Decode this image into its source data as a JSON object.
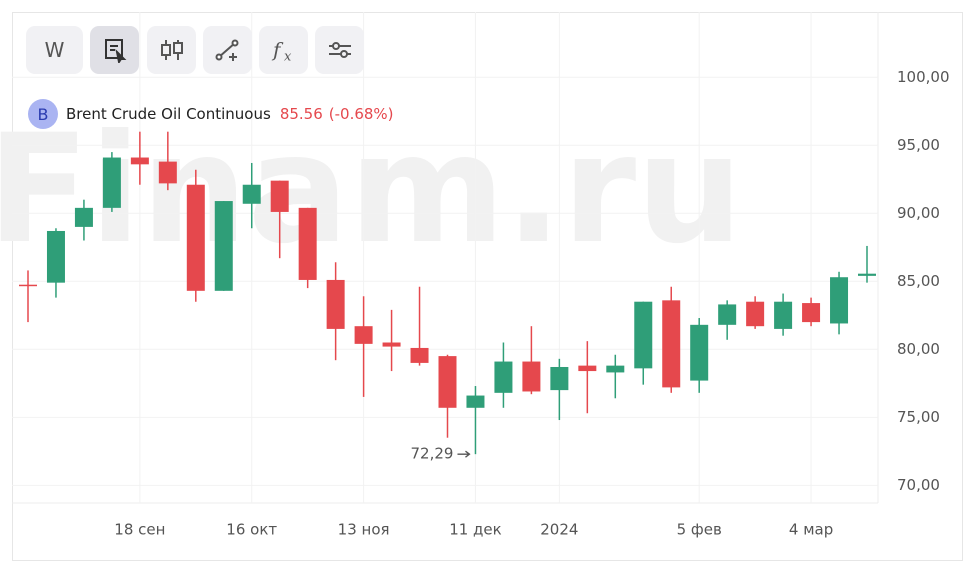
{
  "toolbar": {
    "interval": "W"
  },
  "watermark": "Finam.ru",
  "chart_data": {
    "type": "candlestick",
    "legend": {
      "icon": "B",
      "name": "Brent Crude Oil Continuous",
      "last": 85.56,
      "change": {
        "value": -0.68,
        "label": "(-0.68%)"
      }
    },
    "categories": [
      null,
      null,
      null,
      null,
      "18 сен",
      null,
      null,
      null,
      "16 окт",
      null,
      null,
      null,
      "13 ноя",
      null,
      null,
      null,
      "11 дек",
      null,
      null,
      "2024",
      null,
      null,
      null,
      null,
      "5 фев",
      null,
      null,
      null,
      "4 мар",
      null,
      null
    ],
    "open": [
      84.75,
      84.9,
      89.0,
      90.4,
      94.1,
      93.8,
      92.1,
      84.3,
      90.7,
      92.4,
      90.4,
      85.1,
      81.7,
      80.5,
      80.1,
      79.5,
      75.7,
      76.8,
      79.1,
      77.0,
      78.8,
      78.3,
      78.6,
      83.6,
      77.7,
      81.8,
      83.5,
      81.5,
      83.4,
      81.9,
      85.4
    ],
    "high": [
      85.8,
      88.9,
      91.0,
      94.5,
      96.0,
      96.0,
      93.2,
      90.9,
      93.7,
      92.4,
      90.4,
      86.4,
      83.9,
      82.9,
      84.6,
      79.6,
      77.3,
      80.5,
      81.7,
      79.3,
      80.6,
      79.6,
      83.5,
      84.6,
      82.3,
      83.6,
      83.9,
      84.1,
      83.8,
      85.7,
      87.6
    ],
    "low": [
      82.0,
      83.8,
      88.0,
      90.1,
      92.1,
      91.7,
      83.5,
      84.3,
      88.9,
      86.7,
      84.5,
      79.2,
      76.5,
      78.4,
      78.8,
      73.5,
      72.29,
      75.7,
      76.7,
      74.8,
      75.3,
      76.4,
      77.4,
      76.8,
      76.8,
      80.7,
      81.5,
      81.0,
      81.7,
      81.1,
      84.9
    ],
    "close": [
      84.7,
      88.7,
      90.4,
      94.1,
      93.6,
      92.2,
      84.3,
      90.9,
      92.1,
      90.1,
      85.1,
      81.5,
      80.4,
      80.2,
      79.0,
      75.7,
      76.6,
      79.1,
      76.9,
      78.7,
      78.4,
      78.8,
      83.5,
      77.2,
      81.8,
      83.3,
      81.7,
      83.5,
      82.0,
      85.3,
      85.56
    ],
    "min_label": {
      "value": 72.29,
      "label": "72,29"
    },
    "up_color": "#2f9e78",
    "down_color": "#e5484d",
    "ylim": [
      68.7,
      104.8
    ],
    "yticks": [
      {
        "value": 70,
        "label": "70,00"
      },
      {
        "value": 75,
        "label": "75,00"
      },
      {
        "value": 80,
        "label": "80,00"
      },
      {
        "value": 85,
        "label": "85,00"
      },
      {
        "value": 90,
        "label": "90,00"
      },
      {
        "value": 95,
        "label": "95,00"
      },
      {
        "value": 100,
        "label": "100,00"
      }
    ],
    "grid": true
  }
}
